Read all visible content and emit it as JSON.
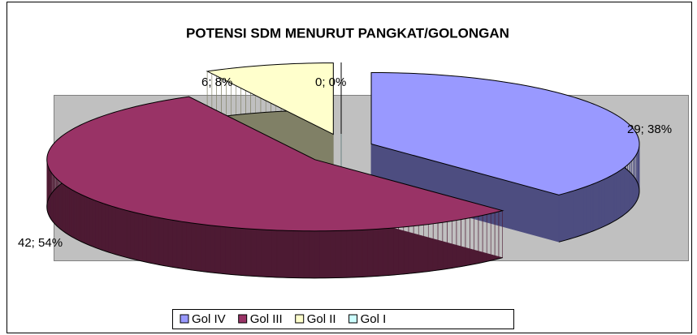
{
  "chart_data": {
    "type": "pie",
    "title": "POTENSI SDM MENURUT PANGKAT/GOLONGAN",
    "categories": [
      "Gol IV",
      "Gol III",
      "Gol II",
      "Gol I"
    ],
    "values": [
      29,
      42,
      6,
      0
    ],
    "value_labels": [
      "29; 38%",
      "42; 54%",
      "6; 8%",
      "0; 0%"
    ],
    "colors": [
      "#9999ff",
      "#993366",
      "#ffffcc",
      "#ccffff"
    ],
    "legend": "bottom"
  }
}
